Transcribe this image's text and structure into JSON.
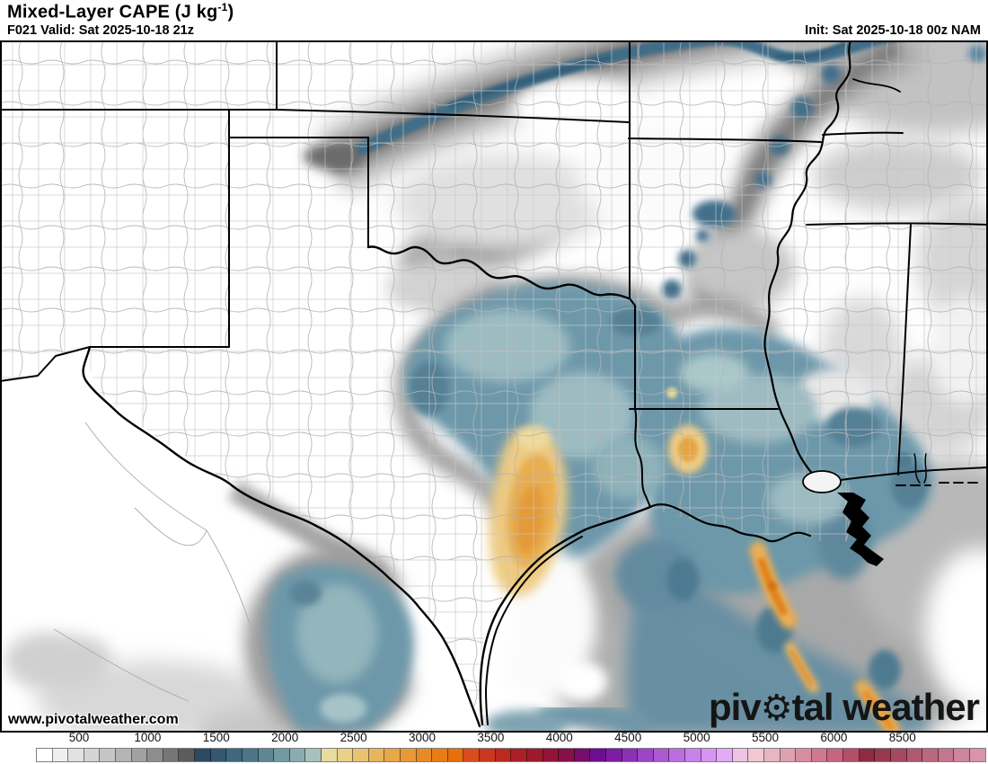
{
  "header": {
    "title_main": "Mixed-Layer CAPE (J kg",
    "title_sup": "-1",
    "title_end": ")",
    "valid": "F021 Valid: Sat 2025-10-18 21z",
    "init": "Init: Sat 2025-10-18 00z NAM"
  },
  "branding": {
    "watermark": "www.pivotalweather.com",
    "logo_pre": "piv",
    "logo_gear": "⚙",
    "logo_post": "tal weather"
  },
  "colorbar": {
    "unit": "J kg-1",
    "labels": [
      "500",
      "1000",
      "1500",
      "2000",
      "2500",
      "3000",
      "3500",
      "4000",
      "4500",
      "5000",
      "5500",
      "6000",
      "8500"
    ],
    "segments": [
      "#ffffff",
      "#efefef",
      "#e2e2e2",
      "#d4d4d4",
      "#c5c5c5",
      "#b4b4b4",
      "#a1a1a1",
      "#8d8d8d",
      "#767676",
      "#5c5c5c",
      "#2c4a63",
      "#34586f",
      "#3f677e",
      "#4c7588",
      "#5d8793",
      "#719aa2",
      "#8aacaf",
      "#a5c2bd",
      "#e7dc9e",
      "#e9d086",
      "#eac371",
      "#e9b55c",
      "#e8a748",
      "#e89936",
      "#e88b26",
      "#e87d16",
      "#e86f0a",
      "#d84c1e",
      "#c8371f",
      "#ba2a21",
      "#ab2026",
      "#9d1a2e",
      "#921538",
      "#861049",
      "#770e6b",
      "#6d0e90",
      "#7d1ea2",
      "#8d31b4",
      "#9d45c4",
      "#ad59d2",
      "#bc6ddf",
      "#ca81e9",
      "#d795f2",
      "#e3aaf5",
      "#eec3e3",
      "#f0c9d2",
      "#e8b5c2",
      "#dfa1b1",
      "#d78da0",
      "#ce798f",
      "#c5657e",
      "#b54e69",
      "#8d2b43",
      "#993950",
      "#a44960",
      "#af5870",
      "#ba6780",
      "#c4768f",
      "#ce859e",
      "#d794ac"
    ]
  }
}
